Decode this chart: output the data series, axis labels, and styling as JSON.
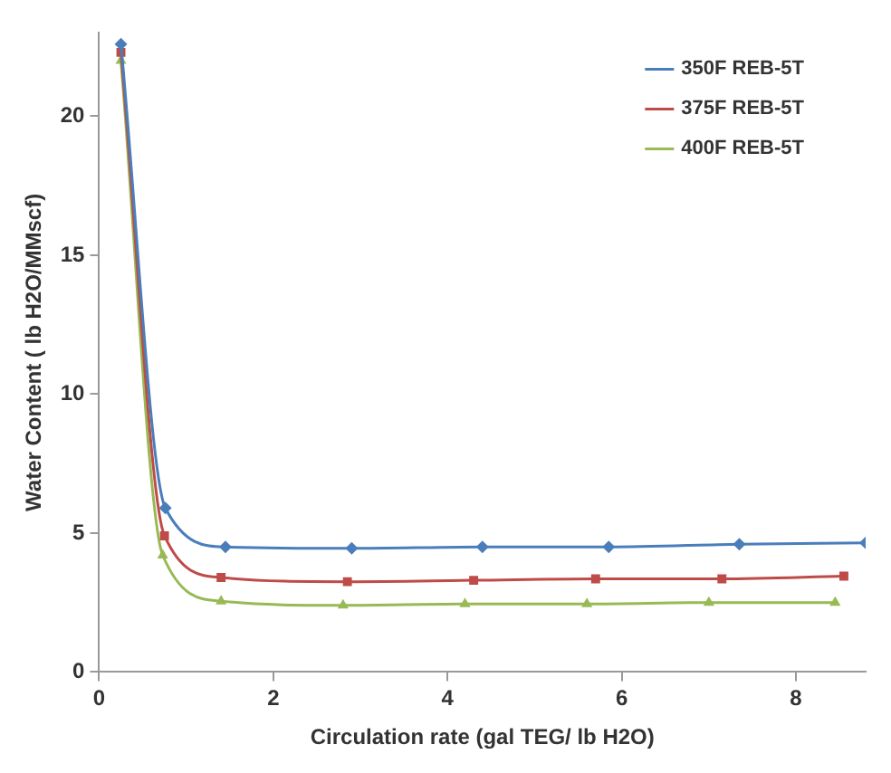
{
  "chart_data": {
    "type": "line",
    "xlabel": "Circulation rate (gal TEG/ lb H2O)",
    "ylabel": "Water Content ( lb H2O/MMscf)",
    "xlim": [
      0,
      8.8
    ],
    "xticks": [
      0,
      2,
      4,
      6,
      8
    ],
    "ylim": [
      0,
      23
    ],
    "yticks": [
      0,
      5,
      10,
      15,
      20
    ],
    "grid": false,
    "legend": "top right",
    "line_style": "solid",
    "series": [
      {
        "name": "350F REB-5T",
        "color": "#4a7ebb",
        "marker": "diamond",
        "x": [
          0.25,
          0.76,
          1.45,
          2.9,
          4.4,
          5.85,
          7.35,
          8.8
        ],
        "values": [
          22.6,
          5.9,
          4.5,
          4.45,
          4.5,
          4.5,
          4.6,
          4.65
        ]
      },
      {
        "name": "375F REB-5T",
        "color": "#be4b48",
        "marker": "square",
        "x": [
          0.25,
          0.75,
          1.4,
          2.85,
          4.3,
          5.7,
          7.15,
          8.55
        ],
        "values": [
          22.3,
          4.9,
          3.4,
          3.25,
          3.3,
          3.35,
          3.35,
          3.45
        ]
      },
      {
        "name": "400F REB-5T",
        "color": "#98b954",
        "marker": "triangle",
        "x": [
          0.25,
          0.73,
          1.4,
          2.8,
          4.2,
          5.6,
          7.0,
          8.45
        ],
        "values": [
          22.0,
          4.2,
          2.55,
          2.4,
          2.45,
          2.45,
          2.5,
          2.5
        ]
      }
    ]
  }
}
